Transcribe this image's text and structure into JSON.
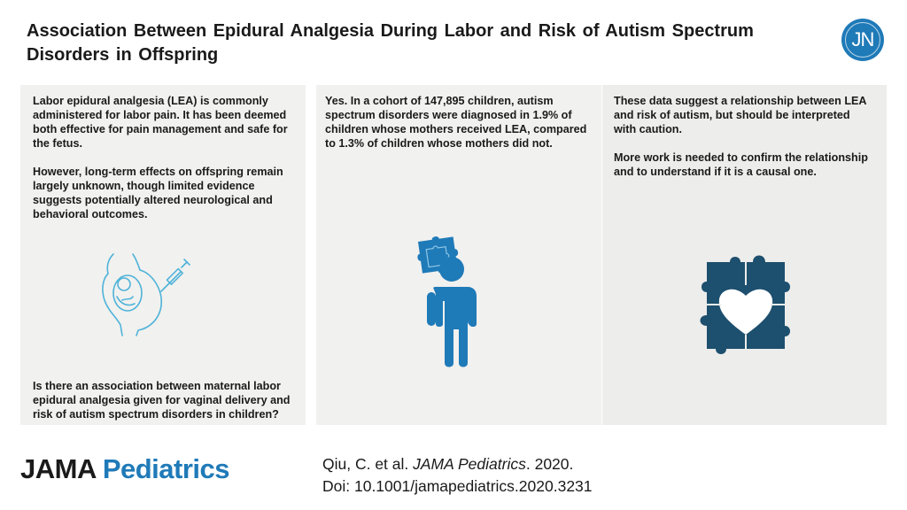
{
  "header": {
    "title": "Association Between Epidural Analgesia During Labor and Risk of Autism Spectrum Disorders in Offspring",
    "logo_text": "JN"
  },
  "panels": {
    "left": {
      "paragraph1": "Labor epidural analgesia (LEA) is commonly administered for labor pain. It has been deemed both effective for pain management and safe for the fetus.",
      "paragraph2": "However, long-term effects on offspring remain largely unknown, though limited evidence suggests potentially altered neurological and behavioral outcomes.",
      "question": "Is there an association between maternal labor epidural analgesia given for vaginal delivery and risk of autism spectrum disorders in children?",
      "icon": "pregnant-woman-epidural-icon"
    },
    "middle": {
      "paragraph1": "Yes. In a cohort of 147,895 children, autism spectrum disorders were diagnosed in 1.9% of children whose mothers received LEA, compared to 1.3% of children whose mothers did not.",
      "icon": "child-puzzle-icon"
    },
    "right": {
      "paragraph1": "These data suggest a relationship between LEA and risk of autism, but should be interpreted with caution.",
      "paragraph2": "More work is needed to confirm the relationship and to understand if it is a causal one.",
      "icon": "puzzle-heart-icon"
    }
  },
  "footer": {
    "brand_part1": "JAMA",
    "brand_part2": "Pediatrics",
    "citation_line1_author": "Qiu, C. et al. ",
    "citation_line1_journal": "JAMA Pediatrics",
    "citation_line1_year": ". 2020.",
    "citation_line2": "Doi: 10.1001/jamapediatrics.2020.3231"
  },
  "colors": {
    "accent": "#1f7ab8",
    "icon_line": "#4fb3d9",
    "panel_bg": "#f1f1ef",
    "puzzle_dark": "#1d4f6e"
  }
}
